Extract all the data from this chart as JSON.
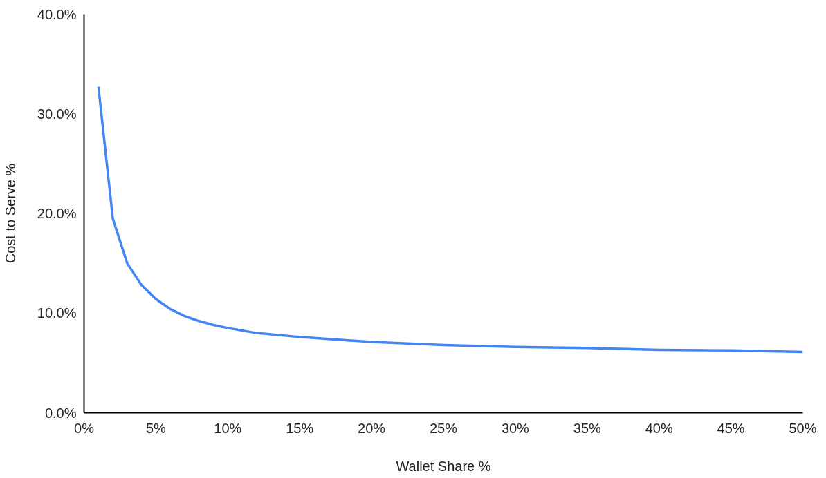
{
  "chart_data": {
    "type": "line",
    "xlabel": "Wallet Share %",
    "ylabel": "Cost to Serve %",
    "x": [
      1,
      2,
      3,
      4,
      5,
      6,
      7,
      8,
      9,
      10,
      12,
      15,
      20,
      25,
      30,
      35,
      40,
      45,
      50
    ],
    "series": [
      {
        "color": "#4285f4",
        "values": [
          32.7,
          19.5,
          15.0,
          12.8,
          11.4,
          10.4,
          9.7,
          9.2,
          8.8,
          8.5,
          8.0,
          7.6,
          7.1,
          6.8,
          6.6,
          6.5,
          6.3,
          6.25,
          6.1
        ]
      }
    ],
    "xlim": [
      0,
      50
    ],
    "ylim": [
      0,
      40
    ],
    "xticks": [
      {
        "value": 0,
        "label": "0%"
      },
      {
        "value": 5,
        "label": "5%"
      },
      {
        "value": 10,
        "label": "10%"
      },
      {
        "value": 15,
        "label": "15%"
      },
      {
        "value": 20,
        "label": "20%"
      },
      {
        "value": 25,
        "label": "25%"
      },
      {
        "value": 30,
        "label": "30%"
      },
      {
        "value": 35,
        "label": "35%"
      },
      {
        "value": 40,
        "label": "40%"
      },
      {
        "value": 45,
        "label": "45%"
      },
      {
        "value": 50,
        "label": "50%"
      }
    ],
    "yticks": [
      {
        "value": 0,
        "label": "0.0%"
      },
      {
        "value": 10,
        "label": "10.0%"
      },
      {
        "value": 20,
        "label": "20.0%"
      },
      {
        "value": 30,
        "label": "30.0%"
      },
      {
        "value": 40,
        "label": "40.0%"
      }
    ],
    "grid": false,
    "marker": "none",
    "line_style": "solid"
  }
}
